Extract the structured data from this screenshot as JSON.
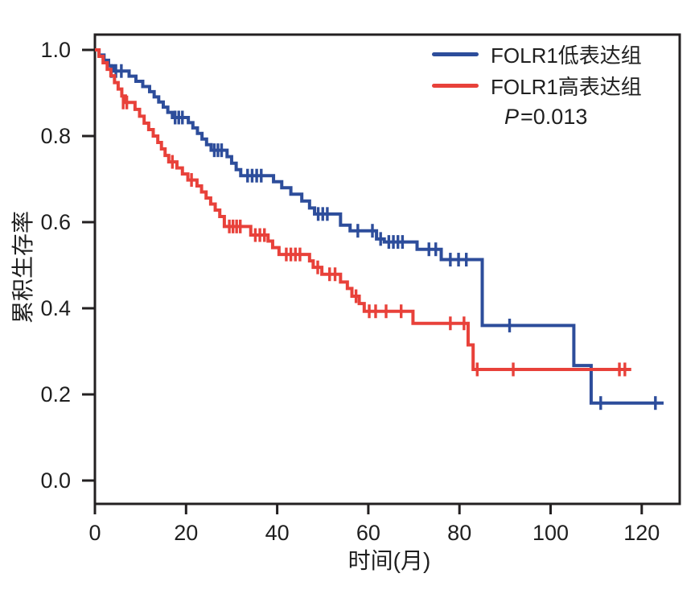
{
  "chart_data": {
    "type": "line",
    "subtype": "kaplan-meier-step",
    "title": "",
    "xlabel": "时间(月)",
    "ylabel": "累积生存率",
    "xlim": [
      0,
      128.3
    ],
    "ylim": [
      -0.054,
      1.036
    ],
    "x_ticks": [
      0,
      20,
      40,
      60,
      80,
      100,
      120
    ],
    "y_ticks": [
      {
        "value": 0.0,
        "label": "0.0"
      },
      {
        "value": 0.2,
        "label": "0.2"
      },
      {
        "value": 0.4,
        "label": "0.4"
      },
      {
        "value": 0.6,
        "label": "0.6"
      },
      {
        "value": 0.8,
        "label": "0.8"
      },
      {
        "value": 1.0,
        "label": "1.0"
      }
    ],
    "grid": false,
    "legend_position": "upper right inside",
    "axis_color": "#232021",
    "annotation": {
      "p_italic": "P",
      "p_rest": "=0.013"
    },
    "series": [
      {
        "name": "FOLR1低表达组",
        "color": "#2d4d9b",
        "end_x": 124.8,
        "steps": [
          [
            0,
            1.0
          ],
          [
            0.9,
            0.988
          ],
          [
            2.0,
            0.976
          ],
          [
            3.0,
            0.963
          ],
          [
            4.0,
            0.951
          ],
          [
            7.5,
            0.939
          ],
          [
            9.0,
            0.927
          ],
          [
            10.5,
            0.915
          ],
          [
            12.0,
            0.903
          ],
          [
            13.0,
            0.891
          ],
          [
            14.0,
            0.879
          ],
          [
            15.0,
            0.867
          ],
          [
            16.0,
            0.855
          ],
          [
            17.0,
            0.843
          ],
          [
            20.5,
            0.831
          ],
          [
            21.5,
            0.819
          ],
          [
            22.5,
            0.806
          ],
          [
            23.5,
            0.793
          ],
          [
            24.5,
            0.78
          ],
          [
            25.5,
            0.767
          ],
          [
            29.0,
            0.752
          ],
          [
            30.0,
            0.737
          ],
          [
            31.0,
            0.722
          ],
          [
            32.0,
            0.708
          ],
          [
            39.2,
            0.694
          ],
          [
            41.0,
            0.68
          ],
          [
            43.0,
            0.665
          ],
          [
            45.4,
            0.649
          ],
          [
            47.1,
            0.633
          ],
          [
            48.2,
            0.619
          ],
          [
            53.9,
            0.593
          ],
          [
            56.0,
            0.58
          ],
          [
            61.8,
            0.561
          ],
          [
            63.5,
            0.554
          ],
          [
            70.7,
            0.537
          ],
          [
            76.0,
            0.513
          ],
          [
            85.0,
            0.36
          ],
          [
            105.1,
            0.267
          ],
          [
            108.9,
            0.18
          ]
        ],
        "censors": [
          [
            3.6,
            0.951
          ],
          [
            4.6,
            0.951
          ],
          [
            5.8,
            0.951
          ],
          [
            17.6,
            0.843
          ],
          [
            18.4,
            0.843
          ],
          [
            19.2,
            0.843
          ],
          [
            26.2,
            0.767
          ],
          [
            27.0,
            0.767
          ],
          [
            27.8,
            0.767
          ],
          [
            33.5,
            0.708
          ],
          [
            34.5,
            0.708
          ],
          [
            35.5,
            0.708
          ],
          [
            36.5,
            0.708
          ],
          [
            49.0,
            0.619
          ],
          [
            50.0,
            0.619
          ],
          [
            51.0,
            0.619
          ],
          [
            57.7,
            0.58
          ],
          [
            60.9,
            0.58
          ],
          [
            62.7,
            0.561
          ],
          [
            64.5,
            0.554
          ],
          [
            65.5,
            0.554
          ],
          [
            66.5,
            0.554
          ],
          [
            67.5,
            0.554
          ],
          [
            73.3,
            0.537
          ],
          [
            74.8,
            0.537
          ],
          [
            78.0,
            0.513
          ],
          [
            79.8,
            0.513
          ],
          [
            81.5,
            0.513
          ],
          [
            91.0,
            0.36
          ],
          [
            111.0,
            0.18
          ],
          [
            123.0,
            0.18
          ]
        ]
      },
      {
        "name": "FOLR1高表达组",
        "color": "#e8413a",
        "end_x": 117.7,
        "steps": [
          [
            0,
            1.0
          ],
          [
            0.9,
            0.985
          ],
          [
            1.8,
            0.97
          ],
          [
            2.7,
            0.955
          ],
          [
            3.5,
            0.94
          ],
          [
            4.3,
            0.924
          ],
          [
            5.1,
            0.909
          ],
          [
            5.9,
            0.893
          ],
          [
            6.7,
            0.878
          ],
          [
            8.8,
            0.862
          ],
          [
            9.8,
            0.846
          ],
          [
            10.8,
            0.83
          ],
          [
            11.8,
            0.815
          ],
          [
            12.8,
            0.8
          ],
          [
            13.8,
            0.785
          ],
          [
            14.6,
            0.77
          ],
          [
            15.4,
            0.755
          ],
          [
            16.2,
            0.74
          ],
          [
            18.0,
            0.726
          ],
          [
            19.2,
            0.712
          ],
          [
            20.4,
            0.698
          ],
          [
            22.4,
            0.684
          ],
          [
            23.4,
            0.67
          ],
          [
            24.4,
            0.656
          ],
          [
            25.4,
            0.642
          ],
          [
            26.4,
            0.628
          ],
          [
            27.4,
            0.613
          ],
          [
            28.4,
            0.59
          ],
          [
            34.2,
            0.57
          ],
          [
            38.0,
            0.556
          ],
          [
            39.0,
            0.541
          ],
          [
            40.4,
            0.525
          ],
          [
            47.1,
            0.51
          ],
          [
            47.9,
            0.495
          ],
          [
            49.8,
            0.479
          ],
          [
            53.9,
            0.461
          ],
          [
            55.4,
            0.446
          ],
          [
            56.4,
            0.428
          ],
          [
            58.0,
            0.411
          ],
          [
            59.1,
            0.393
          ],
          [
            69.8,
            0.365
          ],
          [
            81.9,
            0.315
          ],
          [
            83.0,
            0.258
          ]
        ],
        "censors": [
          [
            6.2,
            0.878
          ],
          [
            7.0,
            0.878
          ],
          [
            17.0,
            0.74
          ],
          [
            21.2,
            0.698
          ],
          [
            29.5,
            0.59
          ],
          [
            30.3,
            0.59
          ],
          [
            31.1,
            0.59
          ],
          [
            31.9,
            0.59
          ],
          [
            35.2,
            0.57
          ],
          [
            36.2,
            0.57
          ],
          [
            37.2,
            0.57
          ],
          [
            42.0,
            0.525
          ],
          [
            43.0,
            0.525
          ],
          [
            44.0,
            0.525
          ],
          [
            45.0,
            0.525
          ],
          [
            48.9,
            0.495
          ],
          [
            51.5,
            0.479
          ],
          [
            52.7,
            0.479
          ],
          [
            57.3,
            0.428
          ],
          [
            60.2,
            0.393
          ],
          [
            61.6,
            0.393
          ],
          [
            63.9,
            0.393
          ],
          [
            67.2,
            0.393
          ],
          [
            78.0,
            0.365
          ],
          [
            81.0,
            0.365
          ],
          [
            83.9,
            0.258
          ],
          [
            91.8,
            0.258
          ],
          [
            115.1,
            0.258
          ],
          [
            116.3,
            0.258
          ]
        ]
      }
    ]
  }
}
